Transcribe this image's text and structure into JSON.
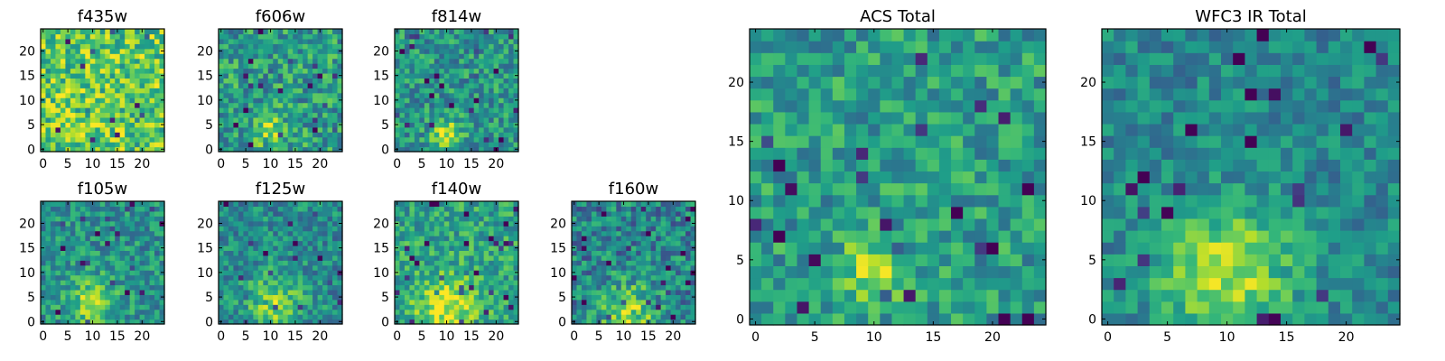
{
  "chart_data": [
    {
      "type": "heatmap",
      "title": "f435w",
      "colormap": "viridis",
      "grid_size": 25,
      "xlim": [
        0,
        24
      ],
      "ylim": [
        0,
        24
      ],
      "xticks": [
        0,
        5,
        10,
        15,
        20
      ],
      "yticks": [
        0,
        5,
        10,
        15,
        20
      ],
      "pattern": {
        "peak": [
          10,
          4
        ],
        "width": 3.5,
        "amp": 0.05,
        "noise": 0.26,
        "base": 0.74,
        "seed": 11
      }
    },
    {
      "type": "heatmap",
      "title": "f606w",
      "colormap": "viridis",
      "grid_size": 25,
      "xlim": [
        0,
        24
      ],
      "ylim": [
        0,
        24
      ],
      "xticks": [
        0,
        5,
        10,
        15,
        20
      ],
      "yticks": [
        0,
        5,
        10,
        15,
        20
      ],
      "pattern": {
        "peak": [
          10,
          4
        ],
        "width": 2.2,
        "amp": 0.32,
        "noise": 0.24,
        "base": 0.55,
        "seed": 23
      }
    },
    {
      "type": "heatmap",
      "title": "f814w",
      "colormap": "viridis",
      "grid_size": 25,
      "xlim": [
        0,
        24
      ],
      "ylim": [
        0,
        24
      ],
      "xticks": [
        0,
        5,
        10,
        15,
        20
      ],
      "yticks": [
        0,
        5,
        10,
        15,
        20
      ],
      "pattern": {
        "peak": [
          10,
          3
        ],
        "width": 2.0,
        "amp": 0.42,
        "noise": 0.22,
        "base": 0.52,
        "seed": 37
      }
    },
    {
      "type": "heatmap",
      "title": "f105w",
      "colormap": "viridis",
      "grid_size": 25,
      "xlim": [
        0,
        24
      ],
      "ylim": [
        0,
        24
      ],
      "xticks": [
        0,
        5,
        10,
        15,
        20
      ],
      "yticks": [
        0,
        5,
        10,
        15,
        20
      ],
      "pattern": {
        "peak": [
          10,
          4
        ],
        "width": 3.5,
        "amp": 0.35,
        "noise": 0.2,
        "base": 0.5,
        "seed": 41
      }
    },
    {
      "type": "heatmap",
      "title": "f125w",
      "colormap": "viridis",
      "grid_size": 25,
      "xlim": [
        0,
        24
      ],
      "ylim": [
        0,
        24
      ],
      "xticks": [
        0,
        5,
        10,
        15,
        20
      ],
      "yticks": [
        0,
        5,
        10,
        15,
        20
      ],
      "pattern": {
        "peak": [
          11,
          4
        ],
        "width": 3.8,
        "amp": 0.35,
        "noise": 0.2,
        "base": 0.48,
        "seed": 53
      }
    },
    {
      "type": "heatmap",
      "title": "f140w",
      "colormap": "viridis",
      "grid_size": 25,
      "xlim": [
        0,
        24
      ],
      "ylim": [
        0,
        24
      ],
      "xticks": [
        0,
        5,
        10,
        15,
        20
      ],
      "yticks": [
        0,
        5,
        10,
        15,
        20
      ],
      "pattern": {
        "peak": [
          10,
          3
        ],
        "width": 4.5,
        "amp": 0.35,
        "noise": 0.2,
        "base": 0.58,
        "seed": 67
      }
    },
    {
      "type": "heatmap",
      "title": "f160w",
      "colormap": "viridis",
      "grid_size": 25,
      "xlim": [
        0,
        24
      ],
      "ylim": [
        0,
        24
      ],
      "xticks": [
        0,
        5,
        10,
        15,
        20
      ],
      "yticks": [
        0,
        5,
        10,
        15,
        20
      ],
      "pattern": {
        "peak": [
          11,
          2
        ],
        "width": 4.0,
        "amp": 0.38,
        "noise": 0.24,
        "base": 0.45,
        "seed": 71
      }
    },
    {
      "type": "heatmap",
      "title": "ACS Total",
      "colormap": "viridis",
      "grid_size": 25,
      "xlim": [
        0,
        24
      ],
      "ylim": [
        0,
        24
      ],
      "xticks": [
        0,
        5,
        10,
        15,
        20
      ],
      "yticks": [
        0,
        5,
        10,
        15,
        20
      ],
      "pattern": {
        "peak": [
          10,
          4
        ],
        "width": 1.8,
        "amp": 0.4,
        "noise": 0.2,
        "base": 0.55,
        "seed": 83
      }
    },
    {
      "type": "heatmap",
      "title": "WFC3 IR Total",
      "colormap": "viridis",
      "grid_size": 25,
      "xlim": [
        0,
        24
      ],
      "ylim": [
        0,
        24
      ],
      "xticks": [
        0,
        5,
        10,
        15,
        20
      ],
      "yticks": [
        0,
        5,
        10,
        15,
        20
      ],
      "pattern": {
        "peak": [
          10,
          4
        ],
        "width": 4.0,
        "amp": 0.42,
        "noise": 0.16,
        "base": 0.46,
        "seed": 97
      }
    }
  ]
}
